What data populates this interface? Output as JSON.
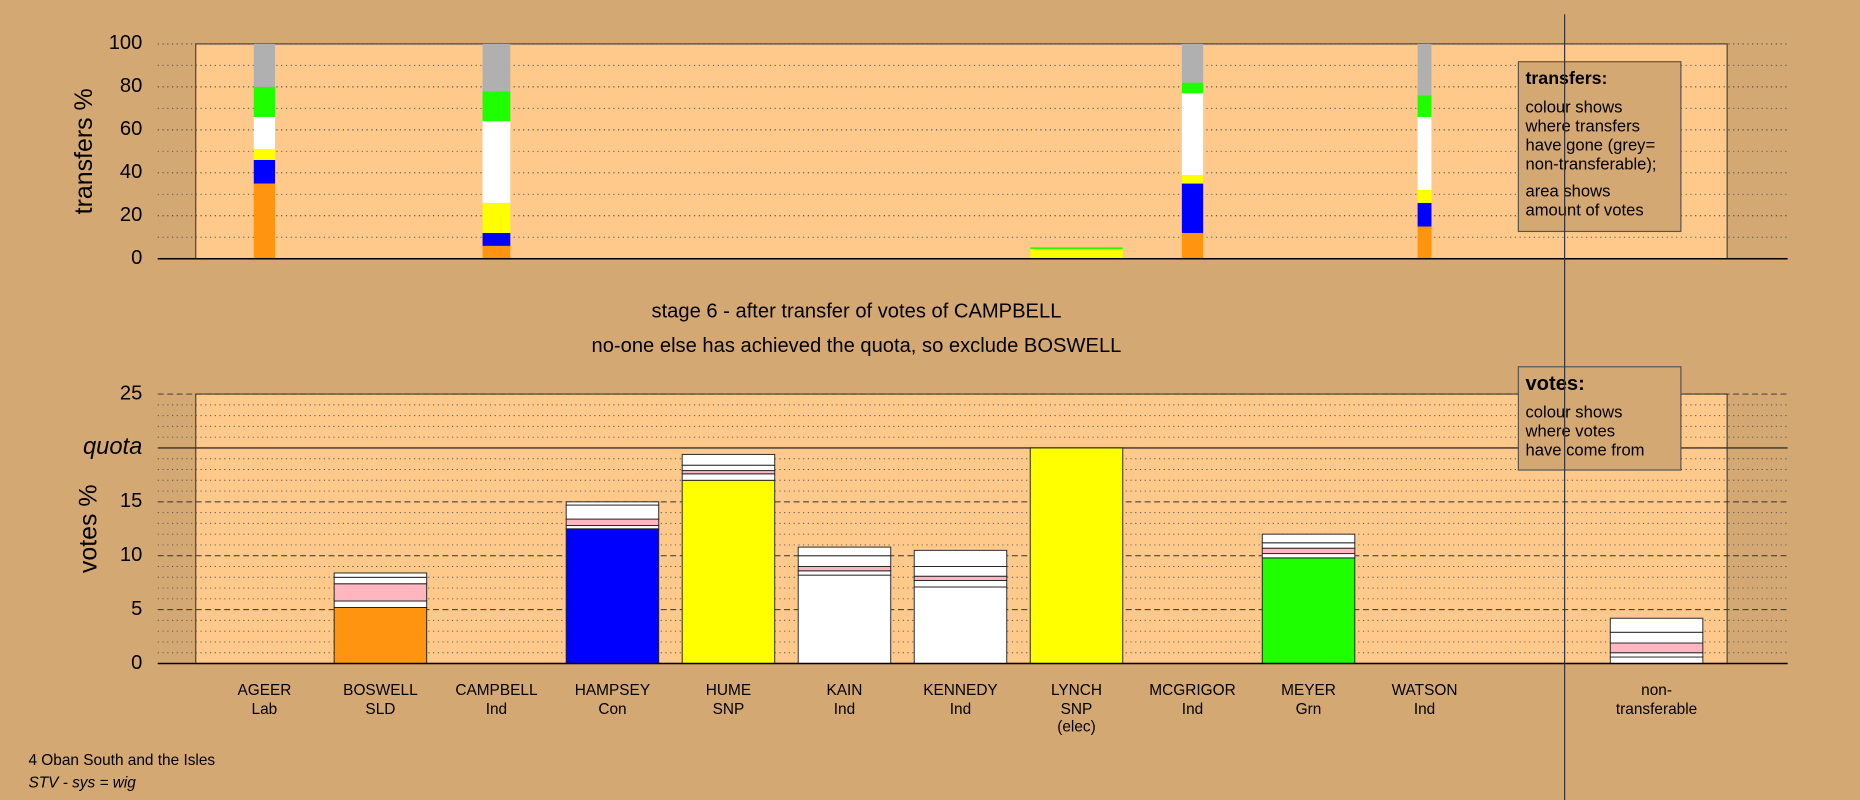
{
  "chart_data": [
    {
      "type": "stacked_bar",
      "ylabel": "transfers %",
      "ylim": [
        0,
        100
      ],
      "yticks": [
        0,
        20,
        40,
        60,
        80,
        100
      ],
      "yminor": [
        10,
        30,
        50,
        70,
        90
      ],
      "widths": [
        0.23,
        null,
        0.3,
        null,
        null,
        null,
        null,
        1,
        0.23,
        null,
        0.15
      ],
      "series": [
        {
          "color": "#ff9410",
          "values": [
            35,
            null,
            6,
            null,
            null,
            null,
            null,
            null,
            12,
            null,
            15
          ]
        },
        {
          "color": "#0000ff",
          "values": [
            11,
            null,
            6,
            null,
            null,
            null,
            null,
            null,
            23,
            null,
            11
          ]
        },
        {
          "color": "#ffff00",
          "values": [
            5,
            null,
            14,
            null,
            null,
            null,
            null,
            4.5,
            4,
            null,
            6
          ]
        },
        {
          "color": "#ffffff",
          "values": [
            15,
            null,
            38,
            null,
            null,
            null,
            null,
            null,
            38,
            null,
            34
          ]
        },
        {
          "color": "#1eff00",
          "values": [
            14,
            null,
            14,
            null,
            null,
            null,
            null,
            0.8,
            5,
            null,
            10
          ]
        },
        {
          "color": "#b0b0b0",
          "values": [
            20,
            null,
            22,
            null,
            null,
            null,
            null,
            null,
            18,
            null,
            24
          ]
        }
      ],
      "legend_title": "transfers:",
      "legend_paragraphs": [
        [
          "colour shows",
          "where transfers",
          "have gone (grey=",
          "non-transferable);"
        ],
        [
          "area shows",
          "amount of votes"
        ]
      ]
    },
    {
      "type": "stacked_bar",
      "title": "stage 6 - after transfer of votes of CAMPBELL",
      "subtitle": "no-one else has achieved the quota, so exclude BOSWELL",
      "ylabel": "votes %",
      "ylim": [
        0,
        25
      ],
      "yticks": [
        0,
        5,
        10,
        15,
        {
          "value": 20,
          "label": "quota"
        },
        25
      ],
      "yminor": [
        1,
        2,
        3,
        4,
        6,
        7,
        8,
        9,
        11,
        12,
        13,
        14,
        16,
        17,
        18,
        19,
        21,
        22,
        23,
        24
      ],
      "categories": [
        "AGEER",
        "BOSWELL",
        "CAMPBELL",
        "HAMPSEY",
        "HUME",
        "KAIN",
        "KENNEDY",
        "LYNCH",
        "MCGRIGOR",
        "MEYER",
        "WATSON",
        "non-"
      ],
      "parties": [
        "Lab",
        "SLD",
        "Ind",
        "Con",
        "SNP",
        "Ind",
        "Ind",
        "SNP",
        "Ind",
        "Grn",
        "Ind",
        "transferable"
      ],
      "notes": [
        null,
        null,
        null,
        null,
        null,
        null,
        null,
        "(elec)",
        null,
        null,
        null,
        null
      ],
      "series": [
        {
          "colors": [
            "#ff0000",
            "#ff9410",
            "#ffffff",
            "#0000ff",
            "#ffff00",
            "#ffffff",
            "#ffffff",
            "#ffff00",
            "#ffffff",
            "#1eff00",
            "#ffffff",
            "#ffffff"
          ],
          "values": [
            0,
            5.2,
            0,
            12.5,
            17,
            8.2,
            7.1,
            20,
            0,
            9.8,
            0,
            0.6
          ]
        },
        {
          "color": "#ffffff",
          "values": [
            0,
            0.6,
            0,
            0.3,
            0.6,
            0.4,
            0.6,
            0,
            0,
            0.4,
            0,
            0.4
          ]
        },
        {
          "color": "#ffb6c1",
          "values": [
            0,
            1.6,
            0,
            0.6,
            0.3,
            0.4,
            0.4,
            0,
            0,
            0.5,
            0,
            0.9
          ]
        },
        {
          "color": "#ffffff",
          "values": [
            0,
            0.6,
            0,
            1.3,
            0.5,
            1.0,
            0.9,
            0,
            0,
            0.5,
            0,
            1.0
          ]
        },
        {
          "color": "#ffffff",
          "values": [
            0,
            0.4,
            0,
            0.3,
            1.0,
            0.8,
            1.5,
            0,
            0,
            0.8,
            0,
            1.3
          ]
        }
      ],
      "legend_title": "votes:",
      "legend_paragraphs": [
        [
          "colour shows",
          "where votes",
          "have come from"
        ]
      ]
    }
  ],
  "footer": {
    "line1": "4 Oban South and the Isles",
    "line2": "STV - sys = wig"
  }
}
